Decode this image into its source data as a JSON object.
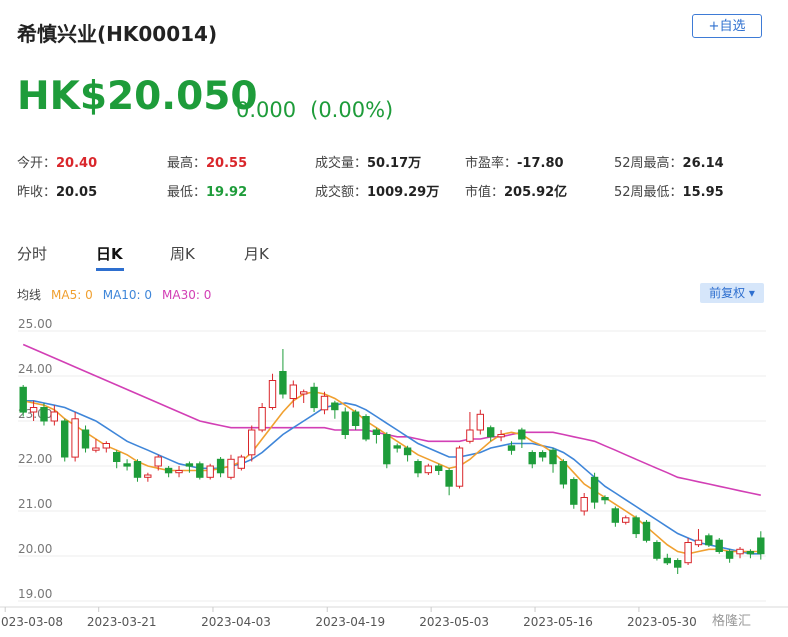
{
  "header": {
    "title": "希慎兴业(HK00014)",
    "watch_label": "+自选",
    "price": "HK$20.050",
    "change": "0.000",
    "change_pct": "(0.00%)"
  },
  "stats": [
    {
      "label": "今开：",
      "value": "20.40",
      "tone": "red"
    },
    {
      "label": "最高：",
      "value": "20.55",
      "tone": "red"
    },
    {
      "label": "成交量：",
      "value": "50.17万",
      "tone": ""
    },
    {
      "label": "市盈率：",
      "value": "-17.80",
      "tone": ""
    },
    {
      "label": "52周最高：",
      "value": "26.14",
      "tone": ""
    },
    {
      "label": "昨收：",
      "value": "20.05",
      "tone": ""
    },
    {
      "label": "最低：",
      "value": "19.92",
      "tone": "green"
    },
    {
      "label": "成交额：",
      "value": "1009.29万",
      "tone": ""
    },
    {
      "label": "市值：",
      "value": "205.92亿",
      "tone": ""
    },
    {
      "label": "52周最低：",
      "value": "15.95",
      "tone": ""
    }
  ],
  "tabs": [
    "分时",
    "日K",
    "周K",
    "月K"
  ],
  "active_tab": 1,
  "legend": {
    "prefix": "均线",
    "ma5": "MA5: 0",
    "ma10": "MA10: 0",
    "ma30": "MA30: 0"
  },
  "adjust_label": "前复权 ▾",
  "watermark": "格隆汇",
  "colors": {
    "up": "#d9262b",
    "down": "#1e9c3a",
    "ma5": "#f0a030",
    "ma10": "#3f86d9",
    "ma30": "#d23fb5",
    "accent": "#2e6fcf"
  },
  "chart_data": {
    "type": "candlestick",
    "ylim": [
      19.0,
      25.0
    ],
    "y_ticks": [
      "25.00",
      "24.00",
      "23.00",
      "22.00",
      "21.00",
      "20.00",
      "19.00"
    ],
    "x_tick_labels": [
      "2023-03-08",
      "2023-03-21",
      "2023-04-03",
      "2023-04-19",
      "2023-05-03",
      "2023-05-16",
      "2023-05-30"
    ],
    "x_tick_index": [
      0,
      9,
      20,
      31,
      41,
      51,
      61
    ],
    "candles": [
      [
        23.75,
        23.2,
        23.8,
        23.1
      ],
      [
        23.2,
        23.3,
        23.45,
        23.0
      ],
      [
        23.3,
        23.0,
        23.4,
        22.9
      ],
      [
        23.0,
        23.2,
        23.35,
        22.9
      ],
      [
        23.0,
        22.2,
        23.05,
        22.1
      ],
      [
        22.2,
        23.05,
        23.2,
        22.1
      ],
      [
        22.8,
        22.4,
        22.9,
        22.3
      ],
      [
        22.35,
        22.4,
        22.6,
        22.3
      ],
      [
        22.4,
        22.5,
        22.55,
        22.3
      ],
      [
        22.3,
        22.1,
        22.35,
        21.95
      ],
      [
        22.05,
        22.0,
        22.15,
        21.9
      ],
      [
        22.1,
        21.75,
        22.15,
        21.65
      ],
      [
        21.75,
        21.8,
        21.85,
        21.65
      ],
      [
        22.0,
        22.2,
        22.25,
        21.9
      ],
      [
        21.95,
        21.85,
        22.0,
        21.75
      ],
      [
        21.85,
        21.9,
        22.0,
        21.75
      ],
      [
        22.05,
        22.0,
        22.1,
        21.85
      ],
      [
        22.05,
        21.75,
        22.1,
        21.7
      ],
      [
        21.75,
        22.0,
        22.05,
        21.7
      ],
      [
        22.15,
        21.85,
        22.2,
        21.75
      ],
      [
        21.75,
        22.15,
        22.25,
        21.7
      ],
      [
        21.95,
        22.2,
        22.25,
        21.9
      ],
      [
        22.25,
        22.8,
        22.9,
        22.1
      ],
      [
        22.8,
        23.3,
        23.4,
        22.75
      ],
      [
        23.3,
        23.9,
        24.05,
        23.25
      ],
      [
        24.1,
        23.6,
        24.6,
        23.5
      ],
      [
        23.5,
        23.8,
        23.9,
        23.3
      ],
      [
        23.6,
        23.65,
        23.7,
        23.4
      ],
      [
        23.75,
        23.3,
        23.85,
        23.2
      ],
      [
        23.25,
        23.55,
        23.65,
        23.15
      ],
      [
        23.4,
        23.25,
        23.45,
        23.05
      ],
      [
        23.2,
        22.7,
        23.3,
        22.6
      ],
      [
        23.2,
        22.9,
        23.25,
        22.8
      ],
      [
        23.1,
        22.6,
        23.15,
        22.55
      ],
      [
        22.8,
        22.7,
        22.85,
        22.5
      ],
      [
        22.7,
        22.05,
        22.75,
        21.95
      ],
      [
        22.45,
        22.4,
        22.5,
        22.3
      ],
      [
        22.4,
        22.25,
        22.45,
        22.1
      ],
      [
        22.1,
        21.85,
        22.15,
        21.75
      ],
      [
        21.85,
        22.0,
        22.05,
        21.8
      ],
      [
        22.0,
        21.9,
        22.05,
        21.8
      ],
      [
        21.9,
        21.55,
        21.95,
        21.35
      ],
      [
        21.55,
        22.4,
        22.45,
        21.5
      ],
      [
        22.55,
        22.8,
        23.2,
        22.5
      ],
      [
        22.8,
        23.15,
        23.25,
        22.7
      ],
      [
        22.85,
        22.65,
        22.9,
        22.55
      ],
      [
        22.65,
        22.7,
        22.8,
        22.55
      ],
      [
        22.45,
        22.35,
        22.55,
        22.25
      ],
      [
        22.8,
        22.6,
        22.85,
        22.4
      ],
      [
        22.3,
        22.05,
        22.35,
        21.95
      ],
      [
        22.3,
        22.2,
        22.35,
        22.1
      ],
      [
        22.35,
        22.05,
        22.4,
        21.85
      ],
      [
        22.1,
        21.6,
        22.15,
        21.5
      ],
      [
        21.7,
        21.15,
        21.75,
        21.05
      ],
      [
        21.0,
        21.3,
        21.4,
        20.9
      ],
      [
        21.75,
        21.2,
        21.85,
        21.05
      ],
      [
        21.3,
        21.25,
        21.35,
        21.15
      ],
      [
        21.05,
        20.75,
        21.1,
        20.65
      ],
      [
        20.75,
        20.85,
        20.9,
        20.7
      ],
      [
        20.85,
        20.5,
        20.9,
        20.4
      ],
      [
        20.75,
        20.35,
        20.8,
        20.3
      ],
      [
        20.3,
        19.95,
        20.35,
        19.9
      ],
      [
        19.95,
        19.85,
        20.05,
        19.8
      ],
      [
        19.9,
        19.75,
        19.95,
        19.6
      ],
      [
        19.85,
        20.3,
        20.4,
        19.8
      ],
      [
        20.25,
        20.35,
        20.6,
        20.2
      ],
      [
        20.45,
        20.25,
        20.5,
        20.2
      ],
      [
        20.35,
        20.1,
        20.4,
        20.05
      ],
      [
        20.1,
        19.95,
        20.15,
        19.85
      ],
      [
        20.05,
        20.15,
        20.2,
        19.95
      ],
      [
        20.1,
        20.05,
        20.15,
        19.95
      ],
      [
        20.4,
        20.05,
        20.55,
        19.92
      ]
    ],
    "ma5": [
      23.45,
      23.4,
      23.35,
      23.25,
      23.05,
      22.9,
      22.75,
      22.6,
      22.45,
      22.35,
      22.25,
      22.1,
      22.0,
      21.95,
      21.9,
      21.9,
      21.9,
      21.9,
      21.9,
      21.95,
      22.0,
      22.1,
      22.3,
      22.6,
      22.9,
      23.2,
      23.45,
      23.6,
      23.65,
      23.6,
      23.5,
      23.35,
      23.2,
      23.0,
      22.85,
      22.7,
      22.55,
      22.4,
      22.25,
      22.15,
      22.05,
      21.95,
      22.0,
      22.15,
      22.35,
      22.55,
      22.7,
      22.75,
      22.7,
      22.55,
      22.45,
      22.3,
      22.1,
      21.85,
      21.6,
      21.45,
      21.3,
      21.15,
      21.0,
      20.85,
      20.65,
      20.45,
      20.25,
      20.1,
      20.05,
      20.1,
      20.15,
      20.15,
      20.1,
      20.1,
      20.1,
      20.1
    ],
    "ma10": [
      23.45,
      23.45,
      23.4,
      23.35,
      23.3,
      23.2,
      23.1,
      23.0,
      22.85,
      22.7,
      22.55,
      22.45,
      22.35,
      22.25,
      22.15,
      22.05,
      22.0,
      21.95,
      21.95,
      21.95,
      22.0,
      22.05,
      22.15,
      22.3,
      22.5,
      22.7,
      22.85,
      23.0,
      23.15,
      23.3,
      23.35,
      23.4,
      23.35,
      23.25,
      23.1,
      22.95,
      22.8,
      22.65,
      22.5,
      22.4,
      22.3,
      22.2,
      22.2,
      22.25,
      22.3,
      22.4,
      22.45,
      22.5,
      22.5,
      22.5,
      22.45,
      22.4,
      22.3,
      22.15,
      21.95,
      21.75,
      21.55,
      21.4,
      21.25,
      21.1,
      20.95,
      20.8,
      20.65,
      20.5,
      20.4,
      20.3,
      20.25,
      20.2,
      20.15,
      20.1,
      20.05,
      20.05
    ],
    "ma30": [
      24.7,
      24.6,
      24.5,
      24.4,
      24.3,
      24.2,
      24.1,
      24.0,
      23.9,
      23.8,
      23.7,
      23.6,
      23.5,
      23.4,
      23.3,
      23.2,
      23.1,
      23.0,
      22.95,
      22.9,
      22.85,
      22.85,
      22.85,
      22.85,
      22.85,
      22.85,
      22.85,
      22.85,
      22.85,
      22.85,
      22.8,
      22.8,
      22.8,
      22.8,
      22.75,
      22.7,
      22.65,
      22.65,
      22.6,
      22.55,
      22.55,
      22.55,
      22.55,
      22.6,
      22.6,
      22.65,
      22.65,
      22.7,
      22.75,
      22.75,
      22.75,
      22.75,
      22.7,
      22.65,
      22.6,
      22.55,
      22.45,
      22.35,
      22.25,
      22.15,
      22.05,
      21.95,
      21.85,
      21.75,
      21.7,
      21.65,
      21.6,
      21.55,
      21.5,
      21.45,
      21.4,
      21.35
    ]
  }
}
